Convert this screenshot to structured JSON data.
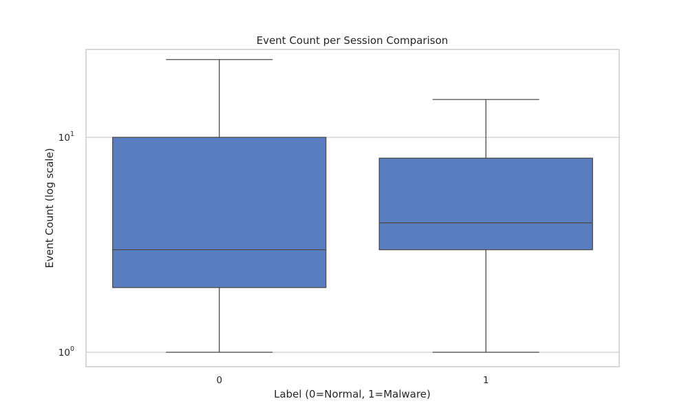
{
  "chart_data": {
    "type": "box",
    "title": "Event Count per Session Comparison",
    "xlabel": "Label (0=Normal, 1=Malware)",
    "ylabel": "Event Count (log scale)",
    "yscale": "log",
    "ylim": [
      0.935,
      27
    ],
    "grid": "horizontal",
    "categories": [
      "0",
      "1"
    ],
    "boxes": [
      {
        "category": "0",
        "whisker_low": 1,
        "q1": 2,
        "median": 3,
        "q3": 10,
        "whisker_high": 23
      },
      {
        "category": "1",
        "whisker_low": 1,
        "q1": 3,
        "median": 4,
        "q3": 8,
        "whisker_high": 15
      }
    ],
    "y_ticks": [
      {
        "value": 1,
        "base": "10",
        "exp": "0"
      },
      {
        "value": 10,
        "base": "10",
        "exp": "1"
      }
    ],
    "colors": {
      "box_fill": "#5a7dc0",
      "line": "#4a4a4a",
      "grid": "#cccccc",
      "spine": "#cccccc"
    }
  }
}
